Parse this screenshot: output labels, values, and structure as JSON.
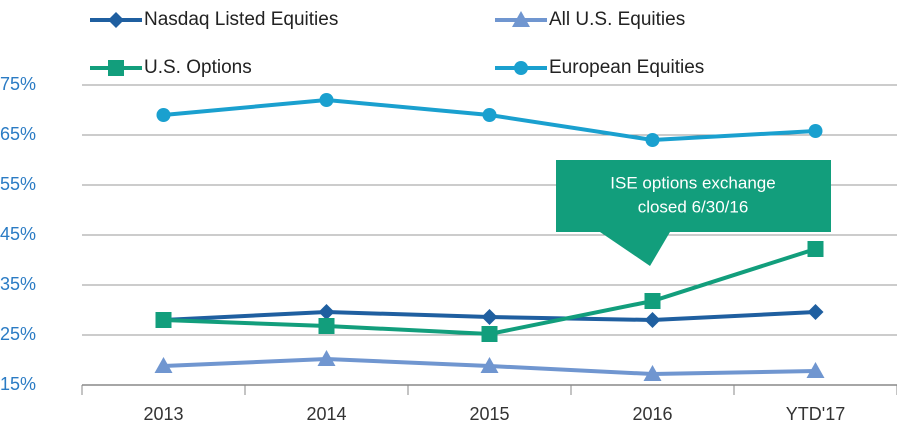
{
  "chart_data": {
    "type": "line",
    "categories": [
      "2013",
      "2014",
      "2015",
      "2016",
      "YTD'17"
    ],
    "series": [
      {
        "name": "Nasdaq Listed Equities",
        "color": "#1f5fa0",
        "marker": "diamond",
        "values": [
          28,
          29.6,
          28.6,
          28,
          29.6
        ]
      },
      {
        "name": "All U.S. Equities",
        "color": "#7096d0",
        "marker": "triangle",
        "values": [
          18.8,
          20.2,
          18.8,
          17.2,
          17.8
        ]
      },
      {
        "name": "U.S. Options",
        "color": "#129e7c",
        "marker": "square",
        "values": [
          28,
          26.8,
          25.2,
          31.8,
          42.2
        ]
      },
      {
        "name": "European Equities",
        "color": "#1aa0cf",
        "marker": "circle",
        "values": [
          69,
          72,
          69,
          64,
          65.8
        ]
      }
    ],
    "ylim": [
      15,
      75
    ],
    "yticks": [
      {
        "value": 15,
        "label": "15%"
      },
      {
        "value": 25,
        "label": "25%"
      },
      {
        "value": 35,
        "label": "35%"
      },
      {
        "value": 45,
        "label": "45%"
      },
      {
        "value": 55,
        "label": "55%"
      },
      {
        "value": 65,
        "label": "65%"
      },
      {
        "value": 75,
        "label": "75%"
      }
    ],
    "grid": true,
    "annotation": {
      "lines": [
        "ISE options exchange",
        "closed 6/30/16"
      ],
      "color": "#129e7c"
    }
  }
}
